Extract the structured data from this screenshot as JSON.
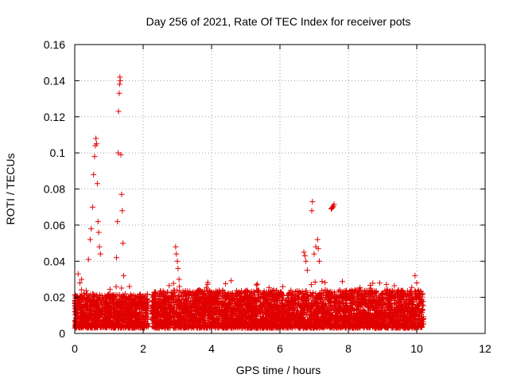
{
  "chart_data": {
    "type": "scatter",
    "title": "Day 256 of 2021, Rate Of TEC Index for receiver pots",
    "xlabel": "GPS time / hours",
    "ylabel": "ROTI / TECUs",
    "xlim": [
      0,
      12
    ],
    "ylim": [
      0,
      0.16
    ],
    "xticks": [
      0,
      2,
      4,
      6,
      8,
      10,
      12
    ],
    "yticks": [
      0,
      0.02,
      0.04,
      0.06,
      0.08,
      0.1,
      0.12,
      0.14,
      0.16
    ],
    "xtick_labels": [
      "0",
      "2",
      "4",
      "6",
      "8",
      "10",
      "12"
    ],
    "ytick_labels": [
      "0",
      "0.02",
      "0.04",
      "0.06",
      "0.08",
      "0.1",
      "0.12",
      "0.14",
      "0.16"
    ],
    "grid": true,
    "marker": "+",
    "color": "#e00000",
    "data_segments": [
      {
        "x_start": 0.0,
        "x_end": 2.15,
        "baseline_min": 0.003,
        "baseline_max": 0.022
      },
      {
        "x_start": 2.25,
        "x_end": 10.2,
        "baseline_min": 0.003,
        "baseline_max": 0.024
      }
    ],
    "spikes": [
      {
        "x": 0.1,
        "y": 0.033
      },
      {
        "x": 0.15,
        "y": 0.028
      },
      {
        "x": 0.2,
        "y": 0.03
      },
      {
        "x": 0.4,
        "y": 0.041
      },
      {
        "x": 0.45,
        "y": 0.052
      },
      {
        "x": 0.48,
        "y": 0.058
      },
      {
        "x": 0.52,
        "y": 0.07
      },
      {
        "x": 0.55,
        "y": 0.088
      },
      {
        "x": 0.58,
        "y": 0.098
      },
      {
        "x": 0.6,
        "y": 0.104
      },
      {
        "x": 0.62,
        "y": 0.108
      },
      {
        "x": 0.64,
        "y": 0.105
      },
      {
        "x": 0.66,
        "y": 0.083
      },
      {
        "x": 0.68,
        "y": 0.062
      },
      {
        "x": 0.7,
        "y": 0.056
      },
      {
        "x": 0.72,
        "y": 0.048
      },
      {
        "x": 0.75,
        "y": 0.044
      },
      {
        "x": 1.22,
        "y": 0.042
      },
      {
        "x": 1.25,
        "y": 0.062
      },
      {
        "x": 1.27,
        "y": 0.1
      },
      {
        "x": 1.28,
        "y": 0.123
      },
      {
        "x": 1.3,
        "y": 0.133
      },
      {
        "x": 1.31,
        "y": 0.138
      },
      {
        "x": 1.32,
        "y": 0.142
      },
      {
        "x": 1.33,
        "y": 0.14
      },
      {
        "x": 1.35,
        "y": 0.099
      },
      {
        "x": 1.37,
        "y": 0.077
      },
      {
        "x": 1.39,
        "y": 0.068
      },
      {
        "x": 1.41,
        "y": 0.05
      },
      {
        "x": 1.43,
        "y": 0.032
      },
      {
        "x": 1.6,
        "y": 0.026
      },
      {
        "x": 2.95,
        "y": 0.048
      },
      {
        "x": 2.97,
        "y": 0.044
      },
      {
        "x": 3.0,
        "y": 0.04
      },
      {
        "x": 3.02,
        "y": 0.036
      },
      {
        "x": 3.05,
        "y": 0.03
      },
      {
        "x": 6.7,
        "y": 0.045
      },
      {
        "x": 6.73,
        "y": 0.043
      },
      {
        "x": 6.76,
        "y": 0.04
      },
      {
        "x": 6.8,
        "y": 0.035
      },
      {
        "x": 6.95,
        "y": 0.073
      },
      {
        "x": 6.93,
        "y": 0.068
      },
      {
        "x": 7.0,
        "y": 0.044
      },
      {
        "x": 7.05,
        "y": 0.048
      },
      {
        "x": 7.1,
        "y": 0.052
      },
      {
        "x": 7.12,
        "y": 0.047
      },
      {
        "x": 7.15,
        "y": 0.04
      },
      {
        "x": 7.5,
        "y": 0.069
      },
      {
        "x": 7.52,
        "y": 0.0695
      },
      {
        "x": 7.54,
        "y": 0.07
      },
      {
        "x": 7.56,
        "y": 0.0705
      },
      {
        "x": 7.58,
        "y": 0.0715
      },
      {
        "x": 9.95,
        "y": 0.032
      },
      {
        "x": 10.0,
        "y": 0.028
      }
    ]
  }
}
